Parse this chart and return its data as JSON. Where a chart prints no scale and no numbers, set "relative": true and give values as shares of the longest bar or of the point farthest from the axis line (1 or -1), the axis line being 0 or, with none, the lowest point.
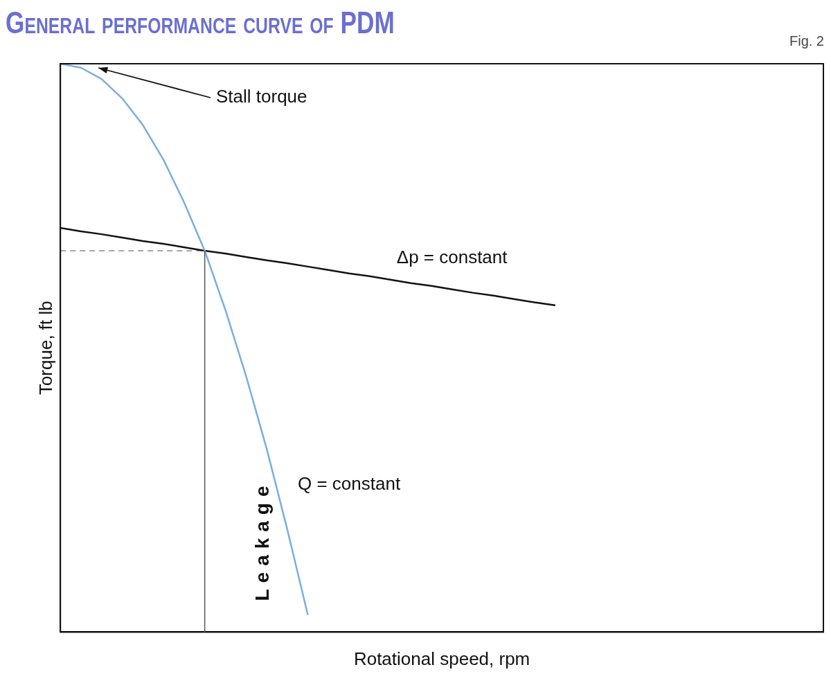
{
  "chart_data": {
    "type": "line",
    "title": "General performance curve of PDM",
    "xlabel": "Rotational speed, rpm",
    "ylabel": "Torque, ft lb",
    "relative": true,
    "marker": "none",
    "categories": [
      null,
      null,
      null,
      null,
      null,
      null,
      null,
      null,
      null,
      null,
      null,
      null,
      null,
      null,
      null,
      null,
      null,
      null,
      null,
      null,
      null,
      null,
      null,
      null,
      null,
      null,
      null,
      null,
      null,
      null,
      null,
      null,
      null,
      null,
      null,
      null,
      null,
      null
    ],
    "series": [
      {
        "name": "Q = constant",
        "color": "#7aaede",
        "line_style": "solid",
        "values": [
          1,
          0.993,
          0.973,
          0.939,
          0.892,
          0.831,
          0.756,
          0.671,
          0.567,
          0.451,
          0.323,
          0.181,
          0.03,
          null,
          null,
          null,
          null,
          null,
          null,
          null,
          null,
          null,
          null,
          null,
          null,
          null,
          null,
          null,
          null,
          null,
          null,
          null,
          null,
          null,
          null,
          null,
          null,
          null
        ]
      },
      {
        "name": "Δp = constant",
        "color": "#111111",
        "line_style": "solid",
        "values": [
          0.711,
          0.705,
          0.7,
          0.694,
          0.688,
          0.683,
          0.677,
          0.671,
          0.666,
          0.66,
          0.654,
          0.649,
          0.643,
          0.637,
          0.631,
          0.626,
          0.62,
          0.614,
          0.609,
          0.603,
          0.597,
          0.592,
          0.586,
          0.58,
          0.575,
          null,
          null,
          null,
          null,
          null,
          null,
          null,
          null,
          null,
          null,
          null,
          null,
          null
        ]
      },
      {
        "color": "#8a8a8a",
        "line_style": "dashed",
        "values": [
          0.671,
          0.671,
          0.671,
          0.671,
          0.671,
          0.671,
          0.671,
          0.671,
          null,
          null,
          null,
          null,
          null,
          null,
          null,
          null,
          null,
          null,
          null,
          null,
          null,
          null,
          null,
          null,
          null,
          null,
          null,
          null,
          null,
          null,
          null,
          null,
          null,
          null,
          null,
          null,
          null,
          null
        ]
      }
    ],
    "annotations": [
      "Stall torque",
      "Leakage",
      "Fig. 2"
    ]
  }
}
